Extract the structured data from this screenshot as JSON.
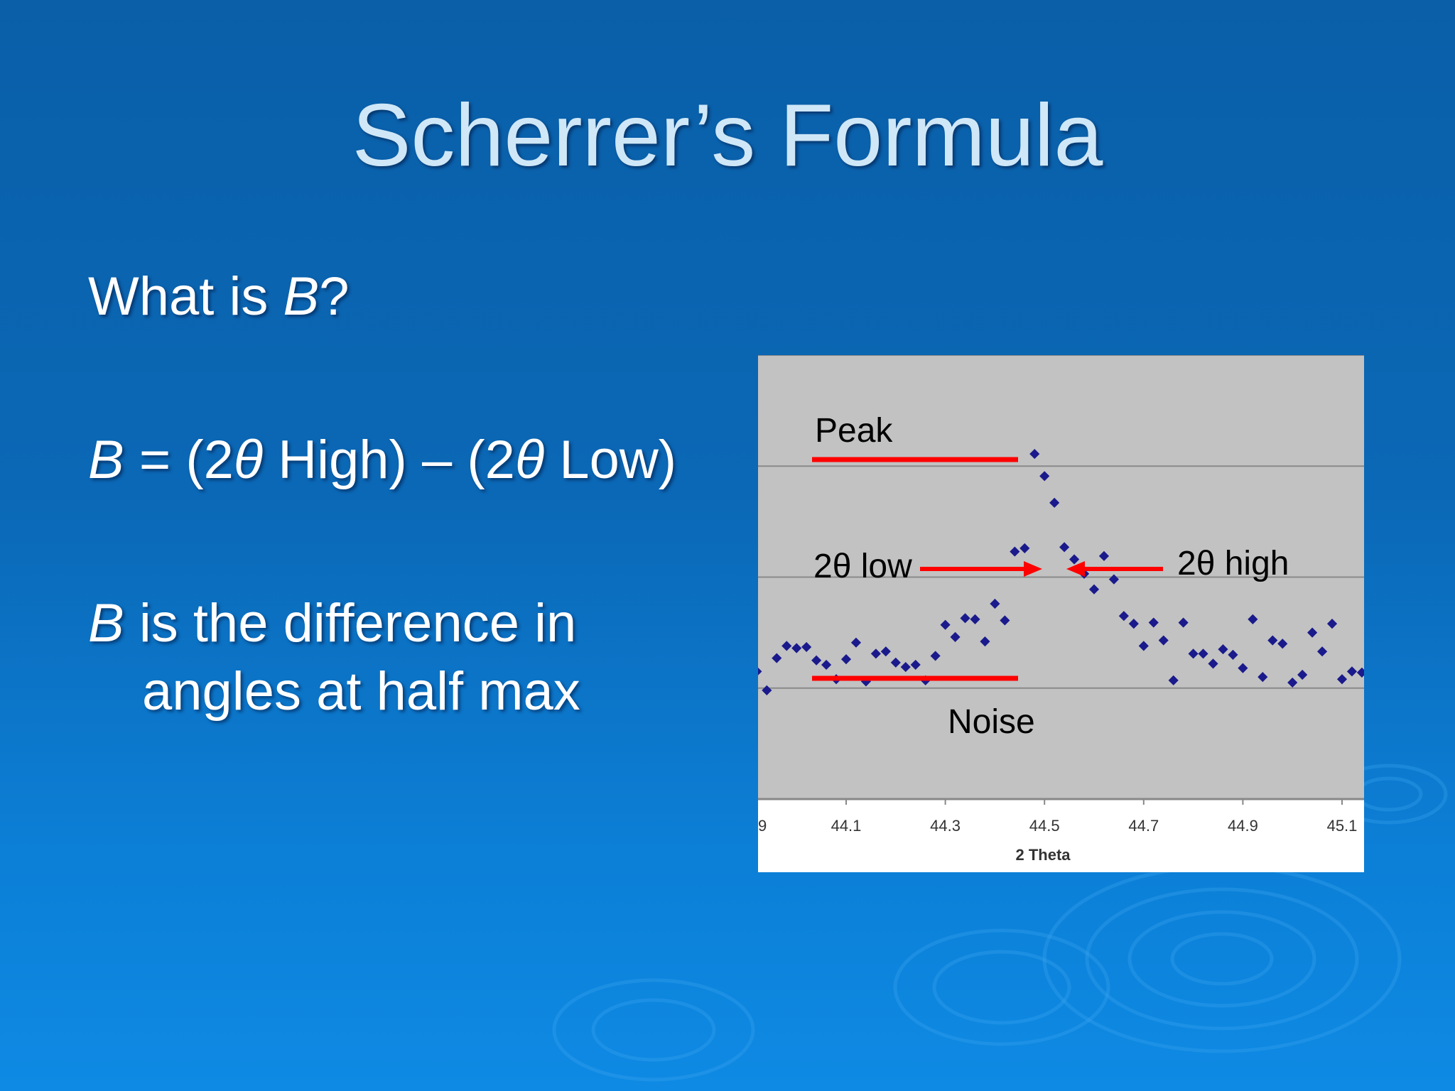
{
  "slide": {
    "title": "Scherrer’s Formula",
    "bullets": {
      "what_is_b": {
        "pre": "What is ",
        "var": "B",
        "post": "?"
      },
      "formula": {
        "var": "B",
        "eq": " = (2",
        "theta1": "θ",
        "high": " High) – (2",
        "theta2": "θ",
        "low": " Low)"
      },
      "definition": {
        "var": "B",
        "line1": " is the difference in",
        "line2": "angles at half max"
      }
    }
  },
  "chart_data": {
    "type": "scatter",
    "xlabel": "2 Theta",
    "ylabel": "",
    "xlim": [
      43.92,
      45.15
    ],
    "ylim": [
      0,
      4.0
    ],
    "tick_labels": [
      "44.1",
      "44.3",
      "44.5",
      "44.7",
      "44.9",
      "45.1"
    ],
    "edge_tick_label": "9",
    "grid": true,
    "marker_color": "#1a1a8c",
    "annotation_color": "#ff0000",
    "annotations": {
      "peak": "Peak",
      "low": "2θ low",
      "high": "2θ high",
      "noise": "Noise"
    },
    "series": [
      {
        "points": [
          [
            43.92,
            1.15
          ],
          [
            43.94,
            0.98
          ],
          [
            43.96,
            1.27
          ],
          [
            43.98,
            1.38
          ],
          [
            44.0,
            1.36
          ],
          [
            44.02,
            1.37
          ],
          [
            44.04,
            1.25
          ],
          [
            44.06,
            1.21
          ],
          [
            44.08,
            1.08
          ],
          [
            44.1,
            1.26
          ],
          [
            44.12,
            1.41
          ],
          [
            44.14,
            1.06
          ],
          [
            44.16,
            1.31
          ],
          [
            44.18,
            1.33
          ],
          [
            44.2,
            1.23
          ],
          [
            44.22,
            1.19
          ],
          [
            44.24,
            1.21
          ],
          [
            44.26,
            1.07
          ],
          [
            44.28,
            1.29
          ],
          [
            44.3,
            1.57
          ],
          [
            44.32,
            1.46
          ],
          [
            44.34,
            1.63
          ],
          [
            44.36,
            1.62
          ],
          [
            44.38,
            1.42
          ],
          [
            44.4,
            1.76
          ],
          [
            44.42,
            1.61
          ],
          [
            44.44,
            2.23
          ],
          [
            44.46,
            2.26
          ],
          [
            44.48,
            3.11
          ],
          [
            44.5,
            2.91
          ],
          [
            44.52,
            2.67
          ],
          [
            44.54,
            2.27
          ],
          [
            44.56,
            2.16
          ],
          [
            44.58,
            2.03
          ],
          [
            44.6,
            1.89
          ],
          [
            44.62,
            2.19
          ],
          [
            44.64,
            1.98
          ],
          [
            44.66,
            1.65
          ],
          [
            44.68,
            1.58
          ],
          [
            44.7,
            1.38
          ],
          [
            44.72,
            1.59
          ],
          [
            44.74,
            1.43
          ],
          [
            44.76,
            1.07
          ],
          [
            44.78,
            1.59
          ],
          [
            44.8,
            1.31
          ],
          [
            44.82,
            1.31
          ],
          [
            44.84,
            1.22
          ],
          [
            44.86,
            1.35
          ],
          [
            44.88,
            1.3
          ],
          [
            44.9,
            1.18
          ],
          [
            44.92,
            1.62
          ],
          [
            44.94,
            1.1
          ],
          [
            44.96,
            1.43
          ],
          [
            44.98,
            1.4
          ],
          [
            45.0,
            1.05
          ],
          [
            45.02,
            1.12
          ],
          [
            45.04,
            1.5
          ],
          [
            45.06,
            1.33
          ],
          [
            45.08,
            1.58
          ],
          [
            45.1,
            1.08
          ],
          [
            45.12,
            1.15
          ],
          [
            45.14,
            1.14
          ]
        ]
      }
    ]
  }
}
